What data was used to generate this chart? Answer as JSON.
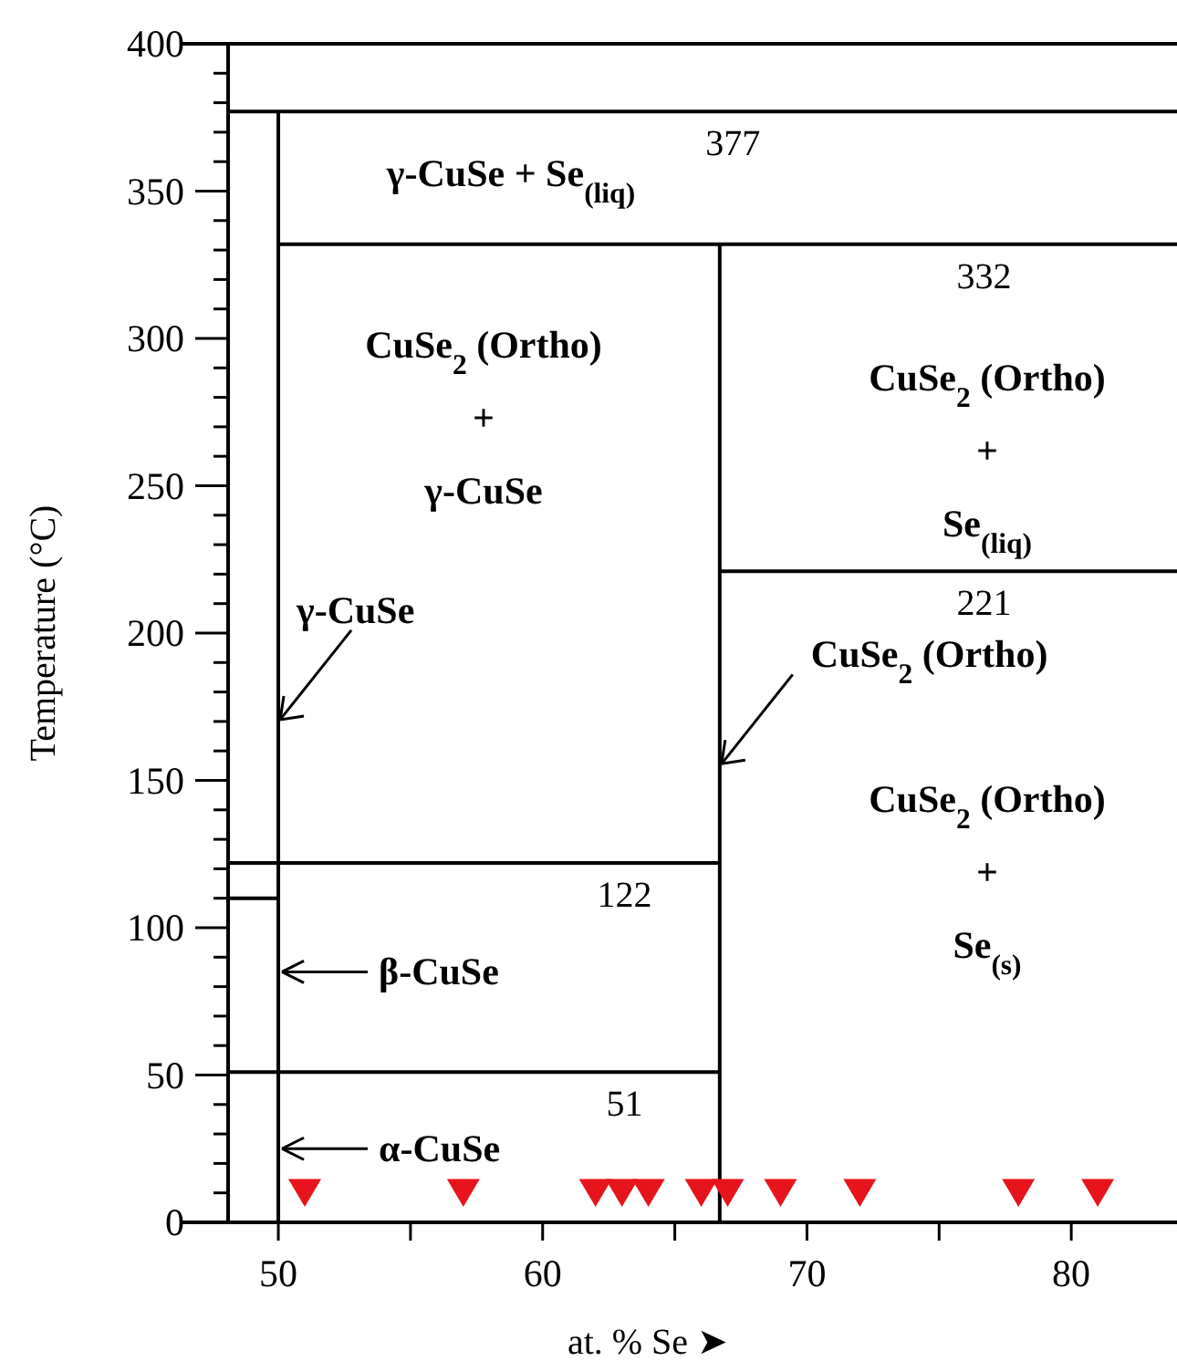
{
  "chart_data": {
    "type": "line",
    "xlabel": "at. % Se ➤",
    "ylabel": "Temperature (°C)",
    "xlim": [
      48.1,
      84
    ],
    "ylim": [
      0,
      400
    ],
    "xticks": [
      50,
      {
        "value": 55,
        "label": null
      },
      60,
      {
        "value": 65,
        "label": null
      },
      70,
      {
        "value": 75,
        "label": null
      },
      80
    ],
    "yticks": [
      0,
      {
        "value": 10,
        "label": null
      },
      {
        "value": 20,
        "label": null
      },
      {
        "value": 30,
        "label": null
      },
      {
        "value": 40,
        "label": null
      },
      50,
      {
        "value": 60,
        "label": null
      },
      {
        "value": 70,
        "label": null
      },
      {
        "value": 80,
        "label": null
      },
      {
        "value": 90,
        "label": null
      },
      100,
      {
        "value": 110,
        "label": null
      },
      {
        "value": 120,
        "label": null
      },
      {
        "value": 130,
        "label": null
      },
      {
        "value": 140,
        "label": null
      },
      150,
      {
        "value": 160,
        "label": null
      },
      {
        "value": 170,
        "label": null
      },
      {
        "value": 180,
        "label": null
      },
      {
        "value": 190,
        "label": null
      },
      200,
      {
        "value": 210,
        "label": null
      },
      {
        "value": 220,
        "label": null
      },
      {
        "value": 230,
        "label": null
      },
      {
        "value": 240,
        "label": null
      },
      250,
      {
        "value": 260,
        "label": null
      },
      {
        "value": 270,
        "label": null
      },
      {
        "value": 280,
        "label": null
      },
      {
        "value": 290,
        "label": null
      },
      300,
      {
        "value": 310,
        "label": null
      },
      {
        "value": 320,
        "label": null
      },
      {
        "value": 330,
        "label": null
      },
      {
        "value": 340,
        "label": null
      },
      350,
      {
        "value": 360,
        "label": null
      },
      {
        "value": 370,
        "label": null
      },
      {
        "value": 380,
        "label": null
      },
      {
        "value": 390,
        "label": null
      },
      400
    ],
    "grid": false,
    "series": [
      {
        "color": "#000000",
        "x": [
          48.1,
          84
        ],
        "values": [
          377,
          377
        ]
      },
      {
        "color": "#000000",
        "x": [
          50,
          84
        ],
        "values": [
          332,
          332
        ]
      },
      {
        "color": "#000000",
        "x": [
          66.7,
          84
        ],
        "values": [
          221,
          221
        ]
      },
      {
        "color": "#000000",
        "x": [
          48.1,
          66.7
        ],
        "values": [
          122,
          122
        ]
      },
      {
        "color": "#000000",
        "x": [
          48.1,
          66.7
        ],
        "values": [
          51,
          51
        ]
      },
      {
        "color": "#000000",
        "x": [
          48.1,
          50
        ],
        "values": [
          110,
          110
        ]
      },
      {
        "color": "#000000",
        "x": [
          50,
          50
        ],
        "values": [
          0,
          377
        ]
      },
      {
        "color": "#000000",
        "x": [
          66.7,
          66.7
        ],
        "values": [
          0,
          332
        ]
      },
      {
        "type": "scatter",
        "color": "#e8141c",
        "marker": "triangle",
        "x": [
          51,
          57,
          62,
          63,
          64,
          66,
          67,
          69,
          72,
          78,
          81
        ],
        "values": [
          10,
          10,
          10,
          10,
          10,
          10,
          10,
          10,
          10,
          10,
          10
        ]
      }
    ],
    "annotations": [
      {
        "text": "377",
        "x": 67.2,
        "y": 377
      },
      {
        "text": "332",
        "x": 76.7,
        "y": 332
      },
      {
        "text": "221",
        "x": 76.7,
        "y": 221
      },
      {
        "text": "122",
        "x": 63.1,
        "y": 122
      },
      {
        "text": "51",
        "x": 63.1,
        "y": 51
      },
      "γ-CuSe + Se$_{(liq)}$",
      "CuSe$_{2}$ (Ortho)\n+\nγ-CuSe",
      "CuSe$_{2}$ (Ortho)\n+\nSe$_{(liq)}$",
      "CuSe$_{2}$ (Ortho)\n+\nSe$_{(s)}$",
      {
        "text": "γ-CuSe",
        "x": 50,
        "y": 170
      },
      {
        "text": "CuSe$_{2}$ (Ortho)",
        "x": 66.7,
        "y": 155
      },
      {
        "text": "β-CuSe",
        "x": 50,
        "y": 85
      },
      {
        "text": "α-CuSe",
        "x": 50,
        "y": 25
      }
    ]
  }
}
